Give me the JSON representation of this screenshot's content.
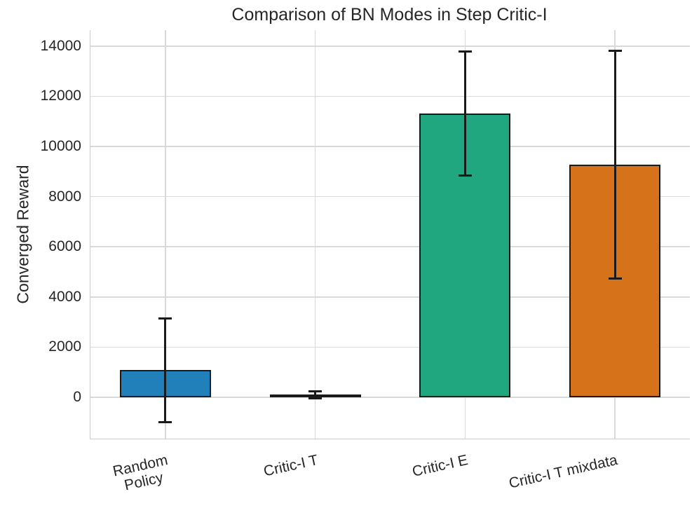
{
  "title": "Comparison of BN Modes in Step Critic-I",
  "chart_data": {
    "type": "bar",
    "title": "Comparison of BN Modes in Step Critic-I",
    "xlabel": "",
    "ylabel": "Converged Reward",
    "categories": [
      "Random\nPolicy",
      "Critic-I T",
      "Critic-I E",
      "Critic-I T mixdata"
    ],
    "values": [
      1080,
      100,
      11320,
      9280
    ],
    "errors": [
      2080,
      150,
      2490,
      4550
    ],
    "error_ranges": [
      [
        -1000,
        3160
      ],
      [
        -50,
        250
      ],
      [
        8830,
        13810
      ],
      [
        4730,
        13830
      ]
    ],
    "bar_colors": [
      "#2180b9",
      "#cf9633",
      "#21a77f",
      "#d6731a"
    ],
    "bar_edge_color": "#1a1a1a",
    "error_color": "#1a1a1a",
    "grid_color": "#d9d9d9",
    "spine_color": "#cccccc",
    "text_color": "#262626",
    "ylim": [
      -1650,
      14640
    ],
    "yticks": [
      0,
      2000,
      4000,
      6000,
      8000,
      10000,
      12000,
      14000
    ],
    "grid": true,
    "grid_axes": "both",
    "legend": false,
    "xtick_rotation_deg": 12.5
  }
}
